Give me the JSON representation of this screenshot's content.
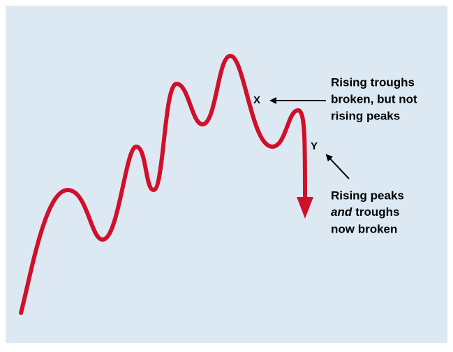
{
  "labels": {
    "x": "X",
    "y": "Y"
  },
  "annotations": [
    {
      "lines": [
        "Rising troughs",
        "broken, but not",
        "rising peaks"
      ]
    },
    {
      "line1": "Rising peaks",
      "line2_italic": "and",
      "line2_rest": "troughs",
      "line3": "now broken"
    }
  ]
}
